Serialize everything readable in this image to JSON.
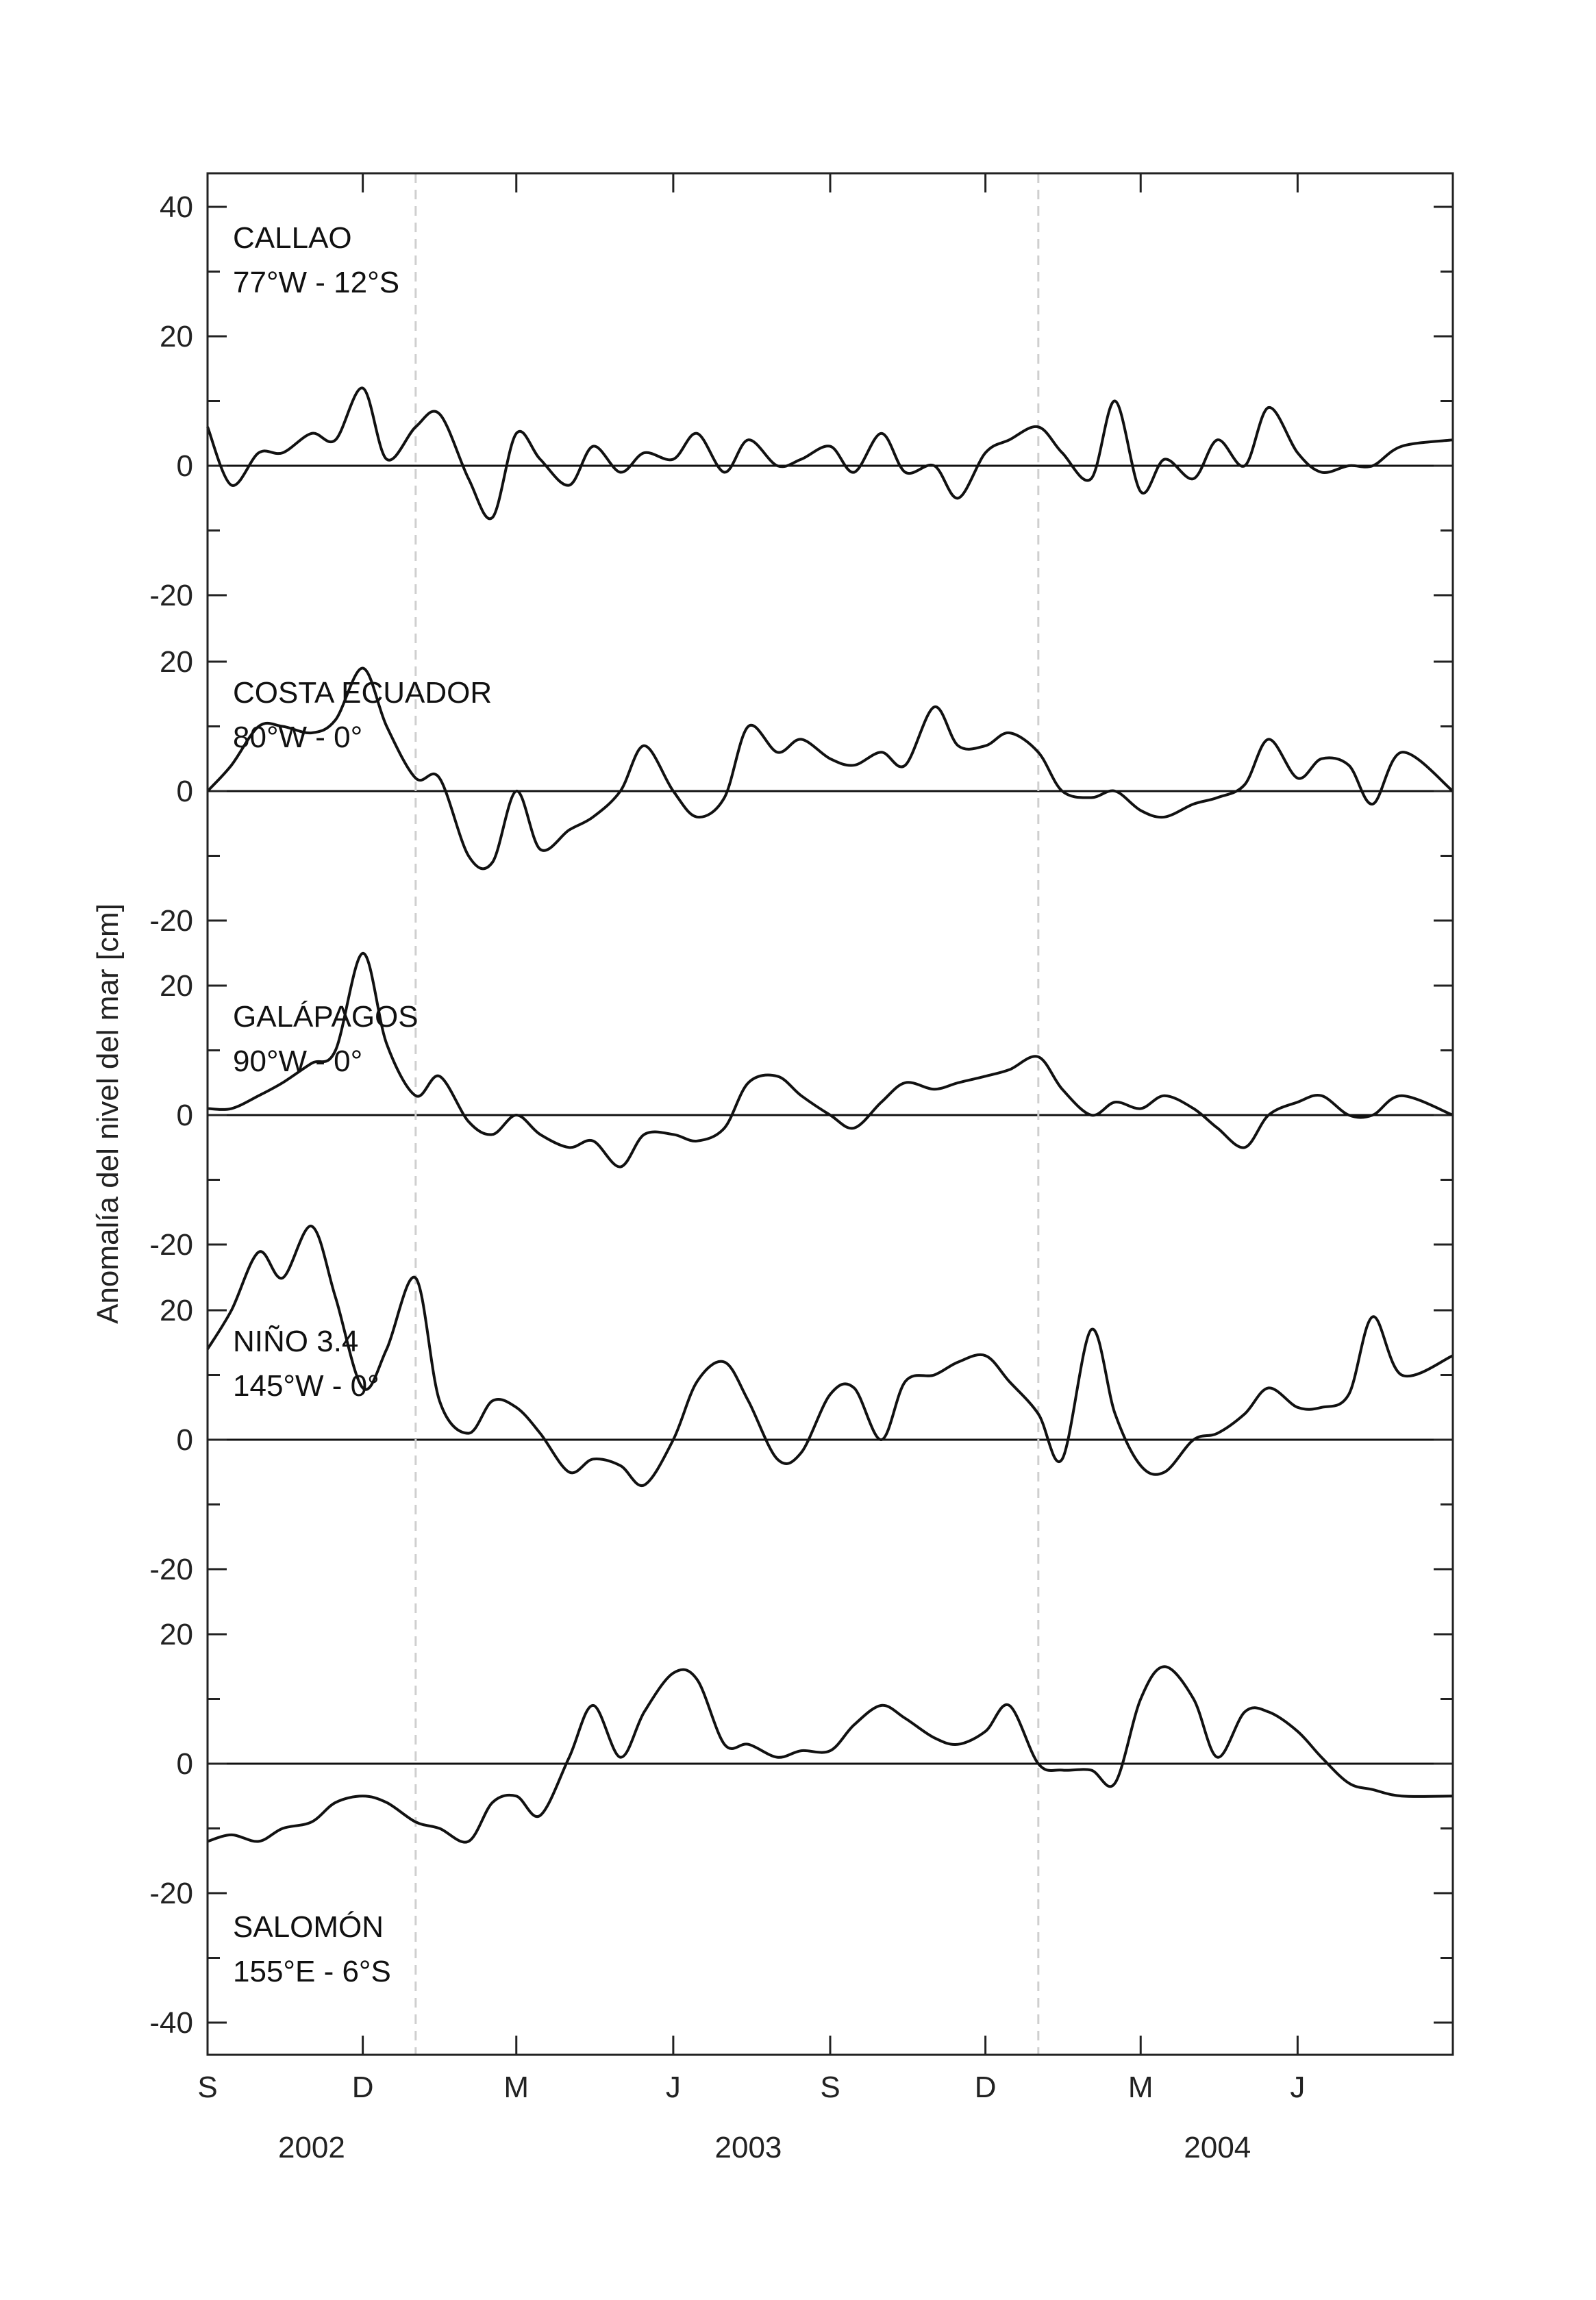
{
  "chart_data": {
    "type": "line",
    "ylabel": "Anomalía del nivel del mar [cm]",
    "x_start": "2002-09-01",
    "x_end": "2004-08-31",
    "x_ticks": [
      {
        "label": "S",
        "date": "2002-09-01"
      },
      {
        "label": "D",
        "date": "2002-12-01"
      },
      {
        "label": "M",
        "date": "2003-03-01"
      },
      {
        "label": "J",
        "date": "2003-06-01"
      },
      {
        "label": "S",
        "date": "2003-09-01"
      },
      {
        "label": "D",
        "date": "2003-12-01"
      },
      {
        "label": "M",
        "date": "2004-03-01"
      },
      {
        "label": "J",
        "date": "2004-06-01"
      }
    ],
    "year_labels": [
      {
        "label": "2002",
        "date": "2002-11-01"
      },
      {
        "label": "2003",
        "date": "2003-07-15"
      },
      {
        "label": "2004",
        "date": "2004-04-15"
      }
    ],
    "vertical_markers": [
      "2003-01-01",
      "2004-01-01"
    ],
    "panels": [
      {
        "name": "CALLAO",
        "coords": "77°W - 12°S",
        "ylim": [
          -20,
          40
        ],
        "yticks": [
          40,
          20,
          0,
          -20
        ],
        "label_position": "top-left",
        "x": [
          "2002-09-01",
          "2002-09-15",
          "2002-10-01",
          "2002-10-15",
          "2002-11-01",
          "2002-11-15",
          "2002-12-01",
          "2002-12-15",
          "2003-01-01",
          "2003-01-15",
          "2003-02-01",
          "2003-02-15",
          "2003-03-01",
          "2003-03-15",
          "2003-04-01",
          "2003-04-15",
          "2003-05-01",
          "2003-05-15",
          "2003-06-01",
          "2003-06-15",
          "2003-07-01",
          "2003-07-15",
          "2003-08-01",
          "2003-08-15",
          "2003-09-01",
          "2003-09-15",
          "2003-10-01",
          "2003-10-15",
          "2003-11-01",
          "2003-11-15",
          "2003-12-01",
          "2003-12-15",
          "2004-01-01",
          "2004-01-15",
          "2004-02-01",
          "2004-02-15",
          "2004-03-01",
          "2004-03-15",
          "2004-04-01",
          "2004-04-15",
          "2004-05-01",
          "2004-05-15",
          "2004-06-01",
          "2004-06-15",
          "2004-07-01",
          "2004-07-15",
          "2004-08-01",
          "2004-08-31"
        ],
        "values": [
          6,
          -3,
          2,
          2,
          5,
          4,
          12,
          1,
          6,
          8,
          -2,
          -8,
          5,
          1,
          -3,
          3,
          -1,
          2,
          1,
          5,
          -1,
          4,
          0,
          1,
          3,
          -1,
          5,
          -1,
          0,
          -5,
          2,
          4,
          6,
          2,
          -2,
          10,
          -4,
          1,
          -2,
          4,
          0,
          9,
          2,
          -1,
          0,
          0,
          3,
          4
        ]
      },
      {
        "name": "COSTA ECUADOR",
        "coords": "80°W - 0°",
        "ylim": [
          -20,
          20
        ],
        "yticks": [
          20,
          0,
          -20
        ],
        "label_position": "top-left",
        "x": [
          "2002-09-01",
          "2002-09-15",
          "2002-10-01",
          "2002-10-15",
          "2002-11-01",
          "2002-11-15",
          "2002-12-01",
          "2002-12-15",
          "2003-01-01",
          "2003-01-15",
          "2003-02-01",
          "2003-02-15",
          "2003-03-01",
          "2003-03-15",
          "2003-04-01",
          "2003-04-15",
          "2003-05-01",
          "2003-05-15",
          "2003-06-01",
          "2003-06-15",
          "2003-07-01",
          "2003-07-15",
          "2003-08-01",
          "2003-08-15",
          "2003-09-01",
          "2003-09-15",
          "2003-10-01",
          "2003-10-15",
          "2003-11-01",
          "2003-11-15",
          "2003-12-01",
          "2003-12-15",
          "2004-01-01",
          "2004-01-15",
          "2004-02-01",
          "2004-02-15",
          "2004-03-01",
          "2004-03-15",
          "2004-04-01",
          "2004-04-15",
          "2004-05-01",
          "2004-05-15",
          "2004-06-01",
          "2004-06-15",
          "2004-07-01",
          "2004-07-15",
          "2004-08-01",
          "2004-08-31"
        ],
        "values": [
          0,
          4,
          10,
          10,
          9,
          11,
          19,
          10,
          2,
          2,
          -10,
          -11,
          0,
          -9,
          -6,
          -4,
          0,
          7,
          0,
          -4,
          -1,
          10,
          6,
          8,
          5,
          4,
          6,
          4,
          13,
          7,
          7,
          9,
          6,
          0,
          -1,
          0,
          -3,
          -4,
          -2,
          -1,
          1,
          8,
          2,
          5,
          4,
          -2,
          6,
          0
        ]
      },
      {
        "name": "GALÁPAGOS",
        "coords": "90°W - 0°",
        "ylim": [
          -20,
          20
        ],
        "yticks": [
          20,
          0,
          -20
        ],
        "label_position": "top-left",
        "x": [
          "2002-09-01",
          "2002-09-15",
          "2002-10-01",
          "2002-10-15",
          "2002-11-01",
          "2002-11-15",
          "2002-12-01",
          "2002-12-15",
          "2003-01-01",
          "2003-01-15",
          "2003-02-01",
          "2003-02-15",
          "2003-03-01",
          "2003-03-15",
          "2003-04-01",
          "2003-04-15",
          "2003-05-01",
          "2003-05-15",
          "2003-06-01",
          "2003-06-15",
          "2003-07-01",
          "2003-07-15",
          "2003-08-01",
          "2003-08-15",
          "2003-09-01",
          "2003-09-15",
          "2003-10-01",
          "2003-10-15",
          "2003-11-01",
          "2003-11-15",
          "2003-12-01",
          "2003-12-15",
          "2004-01-01",
          "2004-01-15",
          "2004-02-01",
          "2004-02-15",
          "2004-03-01",
          "2004-03-15",
          "2004-04-01",
          "2004-04-15",
          "2004-05-01",
          "2004-05-15",
          "2004-06-01",
          "2004-06-15",
          "2004-07-01",
          "2004-07-15",
          "2004-08-01",
          "2004-08-31"
        ],
        "values": [
          1,
          1,
          3,
          5,
          8,
          10,
          25,
          11,
          3,
          6,
          -1,
          -3,
          0,
          -3,
          -5,
          -4,
          -8,
          -3,
          -3,
          -4,
          -2,
          5,
          6,
          3,
          0,
          -2,
          2,
          5,
          4,
          5,
          6,
          7,
          9,
          4,
          0,
          2,
          1,
          3,
          1,
          -2,
          -5,
          0,
          2,
          3,
          0,
          0,
          3,
          0
        ]
      },
      {
        "name": "NIÑO 3.4",
        "coords": "145°W - 0°",
        "ylim": [
          -20,
          20
        ],
        "yticks": [
          20,
          0,
          -20
        ],
        "label_position": "top-left",
        "x": [
          "2002-09-01",
          "2002-09-15",
          "2002-10-01",
          "2002-10-15",
          "2002-11-01",
          "2002-11-15",
          "2002-12-01",
          "2002-12-15",
          "2003-01-01",
          "2003-01-15",
          "2003-02-01",
          "2003-02-15",
          "2003-03-01",
          "2003-03-15",
          "2003-04-01",
          "2003-04-15",
          "2003-05-01",
          "2003-05-15",
          "2003-06-01",
          "2003-06-15",
          "2003-07-01",
          "2003-07-15",
          "2003-08-01",
          "2003-08-15",
          "2003-09-01",
          "2003-09-15",
          "2003-10-01",
          "2003-10-15",
          "2003-11-01",
          "2003-11-15",
          "2003-12-01",
          "2003-12-15",
          "2004-01-01",
          "2004-01-15",
          "2004-02-01",
          "2004-02-15",
          "2004-03-01",
          "2004-03-15",
          "2004-04-01",
          "2004-04-15",
          "2004-05-01",
          "2004-05-15",
          "2004-06-01",
          "2004-06-15",
          "2004-07-01",
          "2004-07-15",
          "2004-08-01",
          "2004-08-31"
        ],
        "values": [
          14,
          20,
          29,
          25,
          33,
          22,
          8,
          14,
          25,
          6,
          1,
          6,
          5,
          1,
          -5,
          -3,
          -4,
          -7,
          0,
          9,
          12,
          6,
          -3,
          -2,
          7,
          8,
          0,
          9,
          10,
          12,
          13,
          9,
          4,
          -3,
          17,
          4,
          -4,
          -5,
          0,
          1,
          4,
          8,
          5,
          5,
          7,
          19,
          10,
          13
        ]
      },
      {
        "name": "SALOMÓN",
        "coords": "155°E - 6°S",
        "ylim": [
          -40,
          20
        ],
        "yticks": [
          20,
          0,
          -20,
          -40
        ],
        "label_position": "bottom-left",
        "x": [
          "2002-09-01",
          "2002-09-15",
          "2002-10-01",
          "2002-10-15",
          "2002-11-01",
          "2002-11-15",
          "2002-12-01",
          "2002-12-15",
          "2003-01-01",
          "2003-01-15",
          "2003-02-01",
          "2003-02-15",
          "2003-03-01",
          "2003-03-15",
          "2003-04-01",
          "2003-04-15",
          "2003-05-01",
          "2003-05-15",
          "2003-06-01",
          "2003-06-15",
          "2003-07-01",
          "2003-07-15",
          "2003-08-01",
          "2003-08-15",
          "2003-09-01",
          "2003-09-15",
          "2003-10-01",
          "2003-10-15",
          "2003-11-01",
          "2003-11-15",
          "2003-12-01",
          "2003-12-15",
          "2004-01-01",
          "2004-01-15",
          "2004-02-01",
          "2004-02-15",
          "2004-03-01",
          "2004-03-15",
          "2004-04-01",
          "2004-04-15",
          "2004-05-01",
          "2004-05-15",
          "2004-06-01",
          "2004-06-15",
          "2004-07-01",
          "2004-07-15",
          "2004-08-01",
          "2004-08-31"
        ],
        "values": [
          -12,
          -11,
          -12,
          -10,
          -9,
          -6,
          -5,
          -6,
          -9,
          -10,
          -12,
          -6,
          -5,
          -8,
          1,
          9,
          1,
          8,
          14,
          13,
          3,
          3,
          1,
          2,
          2,
          6,
          9,
          7,
          4,
          3,
          5,
          9,
          0,
          -1,
          -1,
          -3,
          10,
          15,
          10,
          1,
          8,
          8,
          5,
          1,
          -3,
          -4,
          -5,
          -5
        ]
      }
    ]
  }
}
